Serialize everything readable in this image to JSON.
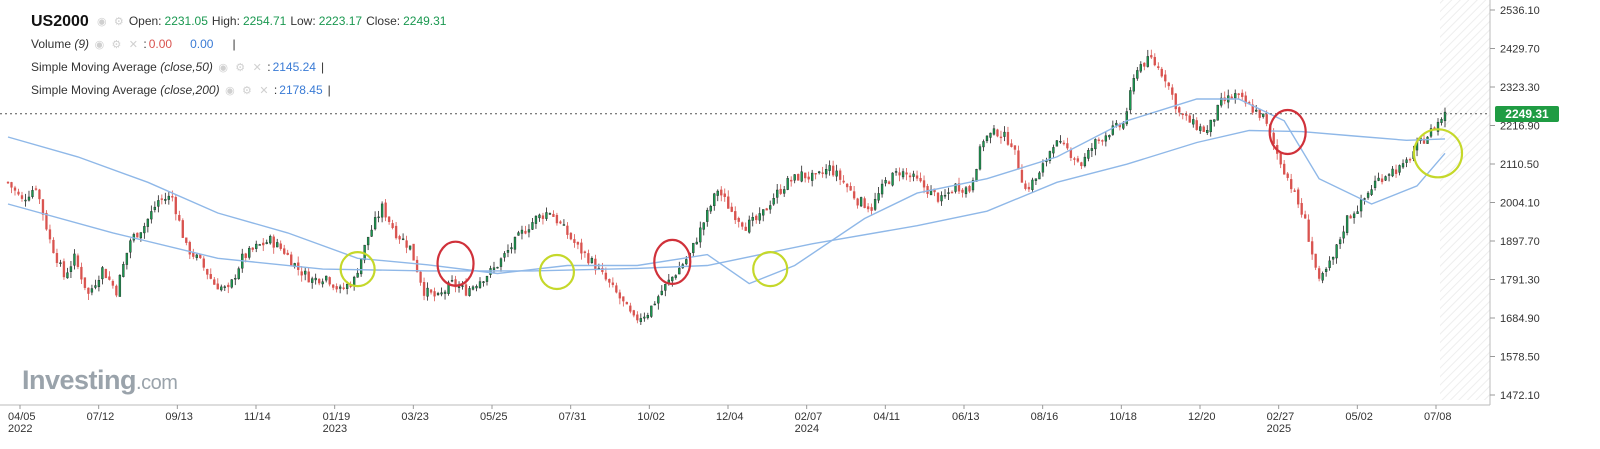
{
  "header": {
    "symbol": "US2000",
    "open_label": "Open:",
    "open": "2231.05",
    "high_label": "High:",
    "high": "2254.71",
    "low_label": "Low:",
    "low": "2223.17",
    "close_label": "Close:",
    "close": "2249.31"
  },
  "indicators": [
    {
      "name": "Volume",
      "params": "(9)",
      "value1": "0.00",
      "value2": "0.00"
    },
    {
      "name": "Simple Moving Average",
      "params": "(close,50)",
      "value": "2145.24"
    },
    {
      "name": "Simple Moving Average",
      "params": "(close,200)",
      "value": "2178.45"
    }
  ],
  "logo": {
    "main": "Investing",
    "suffix": ".com"
  },
  "current_price_tag": "2249.31",
  "colors": {
    "up": "#1a9850",
    "down": "#d9534f",
    "sma": "#8fb8e8",
    "red_circle": "#d0313a",
    "green_circle": "#c5d82a"
  },
  "icons": [
    "eye-icon",
    "gear-icon",
    "close-icon"
  ],
  "chart_data": {
    "type": "candlestick",
    "y_ticks": [
      "2536.10",
      "2429.70",
      "2323.30",
      "2216.90",
      "2110.50",
      "2004.10",
      "1897.70",
      "1791.30",
      "1684.90",
      "1578.50",
      "1472.10"
    ],
    "ylim": [
      1472.1,
      2536.1
    ],
    "x_ticks": [
      {
        "label": "04/05",
        "year": "2022"
      },
      {
        "label": "07/12",
        "year": ""
      },
      {
        "label": "09/13",
        "year": ""
      },
      {
        "label": "11/14",
        "year": ""
      },
      {
        "label": "01/19",
        "year": "2023"
      },
      {
        "label": "03/23",
        "year": ""
      },
      {
        "label": "05/25",
        "year": ""
      },
      {
        "label": "07/31",
        "year": ""
      },
      {
        "label": "10/02",
        "year": ""
      },
      {
        "label": "12/04",
        "year": ""
      },
      {
        "label": "02/07",
        "year": "2024"
      },
      {
        "label": "04/11",
        "year": ""
      },
      {
        "label": "06/13",
        "year": ""
      },
      {
        "label": "08/16",
        "year": ""
      },
      {
        "label": "10/18",
        "year": ""
      },
      {
        "label": "12/20",
        "year": ""
      },
      {
        "label": "02/27",
        "year": "2025"
      },
      {
        "label": "05/02",
        "year": ""
      },
      {
        "label": "07/08",
        "year": ""
      }
    ],
    "price_path": [
      [
        0,
        2060
      ],
      [
        4,
        2010
      ],
      [
        8,
        2050
      ],
      [
        12,
        1900
      ],
      [
        16,
        1800
      ],
      [
        19,
        1850
      ],
      [
        23,
        1750
      ],
      [
        27,
        1820
      ],
      [
        31,
        1760
      ],
      [
        35,
        1900
      ],
      [
        39,
        1940
      ],
      [
        43,
        2010
      ],
      [
        47,
        2020
      ],
      [
        51,
        1880
      ],
      [
        55,
        1840
      ],
      [
        59,
        1780
      ],
      [
        63,
        1760
      ],
      [
        67,
        1850
      ],
      [
        71,
        1880
      ],
      [
        75,
        1900
      ],
      [
        79,
        1870
      ],
      [
        83,
        1820
      ],
      [
        87,
        1790
      ],
      [
        91,
        1800
      ],
      [
        95,
        1760
      ],
      [
        99,
        1790
      ],
      [
        103,
        1910
      ],
      [
        107,
        1990
      ],
      [
        111,
        1920
      ],
      [
        115,
        1880
      ],
      [
        119,
        1760
      ],
      [
        123,
        1740
      ],
      [
        127,
        1780
      ],
      [
        131,
        1760
      ],
      [
        135,
        1790
      ],
      [
        139,
        1820
      ],
      [
        143,
        1870
      ],
      [
        147,
        1920
      ],
      [
        151,
        1960
      ],
      [
        155,
        1980
      ],
      [
        159,
        1930
      ],
      [
        163,
        1880
      ],
      [
        167,
        1840
      ],
      [
        171,
        1790
      ],
      [
        175,
        1740
      ],
      [
        179,
        1680
      ],
      [
        183,
        1700
      ],
      [
        187,
        1760
      ],
      [
        191,
        1810
      ],
      [
        195,
        1860
      ],
      [
        199,
        1950
      ],
      [
        203,
        2040
      ],
      [
        207,
        1980
      ],
      [
        211,
        1940
      ],
      [
        215,
        1960
      ],
      [
        219,
        2020
      ],
      [
        223,
        2060
      ],
      [
        227,
        2080
      ],
      [
        231,
        2070
      ],
      [
        235,
        2100
      ],
      [
        239,
        2060
      ],
      [
        243,
        2010
      ],
      [
        247,
        1990
      ],
      [
        251,
        2060
      ],
      [
        255,
        2090
      ],
      [
        259,
        2070
      ],
      [
        263,
        2040
      ],
      [
        267,
        2010
      ],
      [
        271,
        2050
      ],
      [
        275,
        2040
      ],
      [
        279,
        2180
      ],
      [
        283,
        2200
      ],
      [
        287,
        2170
      ],
      [
        291,
        2040
      ],
      [
        295,
        2080
      ],
      [
        299,
        2170
      ],
      [
        303,
        2150
      ],
      [
        307,
        2110
      ],
      [
        311,
        2170
      ],
      [
        315,
        2200
      ],
      [
        319,
        2220
      ],
      [
        323,
        2380
      ],
      [
        327,
        2400
      ],
      [
        331,
        2350
      ],
      [
        335,
        2250
      ],
      [
        339,
        2220
      ],
      [
        343,
        2200
      ],
      [
        347,
        2280
      ],
      [
        351,
        2300
      ],
      [
        355,
        2270
      ],
      [
        359,
        2240
      ],
      [
        363,
        2140
      ],
      [
        367,
        2050
      ],
      [
        371,
        1950
      ],
      [
        375,
        1780
      ],
      [
        379,
        1850
      ],
      [
        383,
        1960
      ],
      [
        387,
        2000
      ],
      [
        391,
        2060
      ],
      [
        395,
        2090
      ],
      [
        399,
        2100
      ],
      [
        403,
        2160
      ],
      [
        407,
        2200
      ],
      [
        411,
        2249.31
      ]
    ],
    "series": [
      {
        "name": "Simple Moving Average (close,50)",
        "values": [
          [
            0,
            2185
          ],
          [
            20,
            2130
          ],
          [
            40,
            2060
          ],
          [
            60,
            1975
          ],
          [
            80,
            1920
          ],
          [
            100,
            1850
          ],
          [
            120,
            1832
          ],
          [
            140,
            1808
          ],
          [
            160,
            1830
          ],
          [
            180,
            1830
          ],
          [
            200,
            1860
          ],
          [
            212,
            1780
          ],
          [
            225,
            1830
          ],
          [
            245,
            1960
          ],
          [
            260,
            2030
          ],
          [
            280,
            2070
          ],
          [
            300,
            2130
          ],
          [
            320,
            2230
          ],
          [
            340,
            2290
          ],
          [
            352,
            2290
          ],
          [
            365,
            2230
          ],
          [
            375,
            2070
          ],
          [
            390,
            2000
          ],
          [
            403,
            2050
          ],
          [
            411,
            2140
          ]
        ]
      },
      {
        "name": "Simple Moving Average (close,200)",
        "values": [
          [
            0,
            2000
          ],
          [
            30,
            1920
          ],
          [
            60,
            1850
          ],
          [
            90,
            1820
          ],
          [
            120,
            1815
          ],
          [
            150,
            1815
          ],
          [
            180,
            1822
          ],
          [
            200,
            1830
          ],
          [
            230,
            1890
          ],
          [
            260,
            1940
          ],
          [
            280,
            1980
          ],
          [
            300,
            2060
          ],
          [
            320,
            2110
          ],
          [
            340,
            2170
          ],
          [
            355,
            2203
          ],
          [
            370,
            2200
          ],
          [
            385,
            2188
          ],
          [
            400,
            2176
          ],
          [
            411,
            2180
          ]
        ]
      }
    ],
    "annotations": [
      {
        "type": "red-circle",
        "x": 128,
        "y": 1835
      },
      {
        "type": "red-circle",
        "x": 190,
        "y": 1840
      },
      {
        "type": "red-circle",
        "x": 366,
        "y": 2199
      },
      {
        "type": "green-circle",
        "x": 100,
        "y": 1820
      },
      {
        "type": "green-circle",
        "x": 157,
        "y": 1812
      },
      {
        "type": "green-circle",
        "x": 218,
        "y": 1820
      },
      {
        "type": "green-circle",
        "x": 409,
        "y": 2140
      }
    ],
    "current_price": 2249.31
  }
}
